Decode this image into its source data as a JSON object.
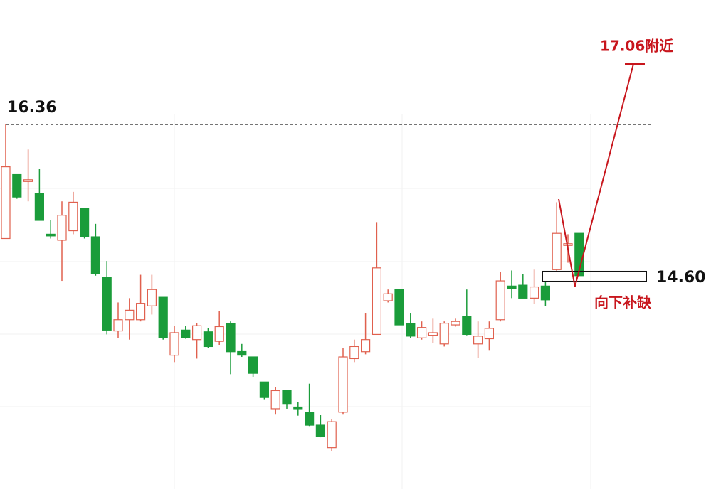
{
  "chart_data": {
    "type": "candlestick",
    "ylim": [
      12.14,
      17.8
    ],
    "up_color": "#e0604e",
    "down_color": "#1a9c3a",
    "open": [
      15.04,
      15.78,
      15.7,
      15.56,
      15.09,
      15.02,
      15.13,
      15.39,
      15.06,
      14.59,
      13.97,
      14.1,
      14.1,
      14.26,
      14.36,
      13.69,
      13.98,
      13.87,
      13.96,
      13.85,
      14.06,
      13.74,
      13.67,
      13.38,
      13.07,
      13.28,
      13.09,
      13.03,
      12.88,
      12.62,
      13.03,
      13.65,
      13.73,
      13.93,
      14.32,
      14.45,
      14.06,
      13.89,
      13.92,
      13.82,
      14.04,
      14.14,
      13.82,
      13.88,
      14.1,
      14.49,
      14.5,
      14.35,
      14.49,
      14.68,
      14.96,
      15.1
    ],
    "high": [
      16.36,
      15.78,
      16.07,
      15.85,
      15.25,
      15.47,
      15.58,
      15.39,
      15.21,
      14.78,
      14.3,
      14.35,
      14.62,
      14.62,
      14.36,
      14.03,
      14.03,
      14.06,
      14.0,
      14.2,
      14.08,
      13.82,
      13.67,
      13.38,
      13.32,
      13.29,
      13.15,
      13.36,
      13.0,
      12.95,
      13.77,
      13.87,
      14.18,
      15.23,
      14.45,
      14.45,
      14.18,
      14.08,
      14.12,
      14.08,
      14.12,
      14.45,
      14.08,
      14.08,
      14.65,
      14.67,
      14.63,
      14.68,
      14.55,
      15.46,
      15.09,
      15.1
    ],
    "low": [
      15.04,
      15.5,
      15.47,
      15.25,
      15.04,
      14.55,
      15.09,
      15.04,
      14.61,
      13.93,
      13.89,
      13.87,
      14.08,
      14.16,
      13.87,
      13.61,
      13.88,
      13.65,
      13.77,
      13.81,
      13.47,
      13.67,
      13.44,
      13.18,
      13.01,
      13.07,
      12.99,
      12.87,
      12.74,
      12.58,
      13.01,
      13.61,
      13.7,
      13.93,
      14.3,
      14.04,
      13.89,
      13.87,
      13.83,
      13.79,
      14.02,
      13.92,
      13.66,
      13.75,
      14.08,
      14.35,
      14.35,
      14.28,
      14.26,
      14.65,
      14.76,
      14.61
    ],
    "close": [
      15.87,
      15.52,
      15.72,
      15.25,
      15.07,
      15.31,
      15.46,
      15.06,
      14.63,
      13.98,
      14.1,
      14.21,
      14.29,
      14.45,
      13.89,
      13.95,
      13.89,
      14.03,
      13.79,
      14.02,
      13.73,
      13.69,
      13.48,
      13.2,
      13.28,
      13.13,
      13.07,
      12.88,
      12.75,
      12.92,
      13.67,
      13.79,
      13.87,
      14.7,
      14.4,
      14.04,
      13.91,
      14.01,
      13.95,
      14.06,
      14.08,
      13.93,
      13.91,
      14.0,
      14.55,
      14.46,
      14.35,
      14.48,
      14.33,
      15.1,
      14.98,
      14.61
    ],
    "reference_line": 16.36,
    "gap_level": {
      "value": 14.6,
      "label": "14.60"
    },
    "target": {
      "value": 17.06,
      "label": "17.06附近"
    },
    "gap_note": "向下补缺",
    "annotation_color": "#c8161d"
  }
}
